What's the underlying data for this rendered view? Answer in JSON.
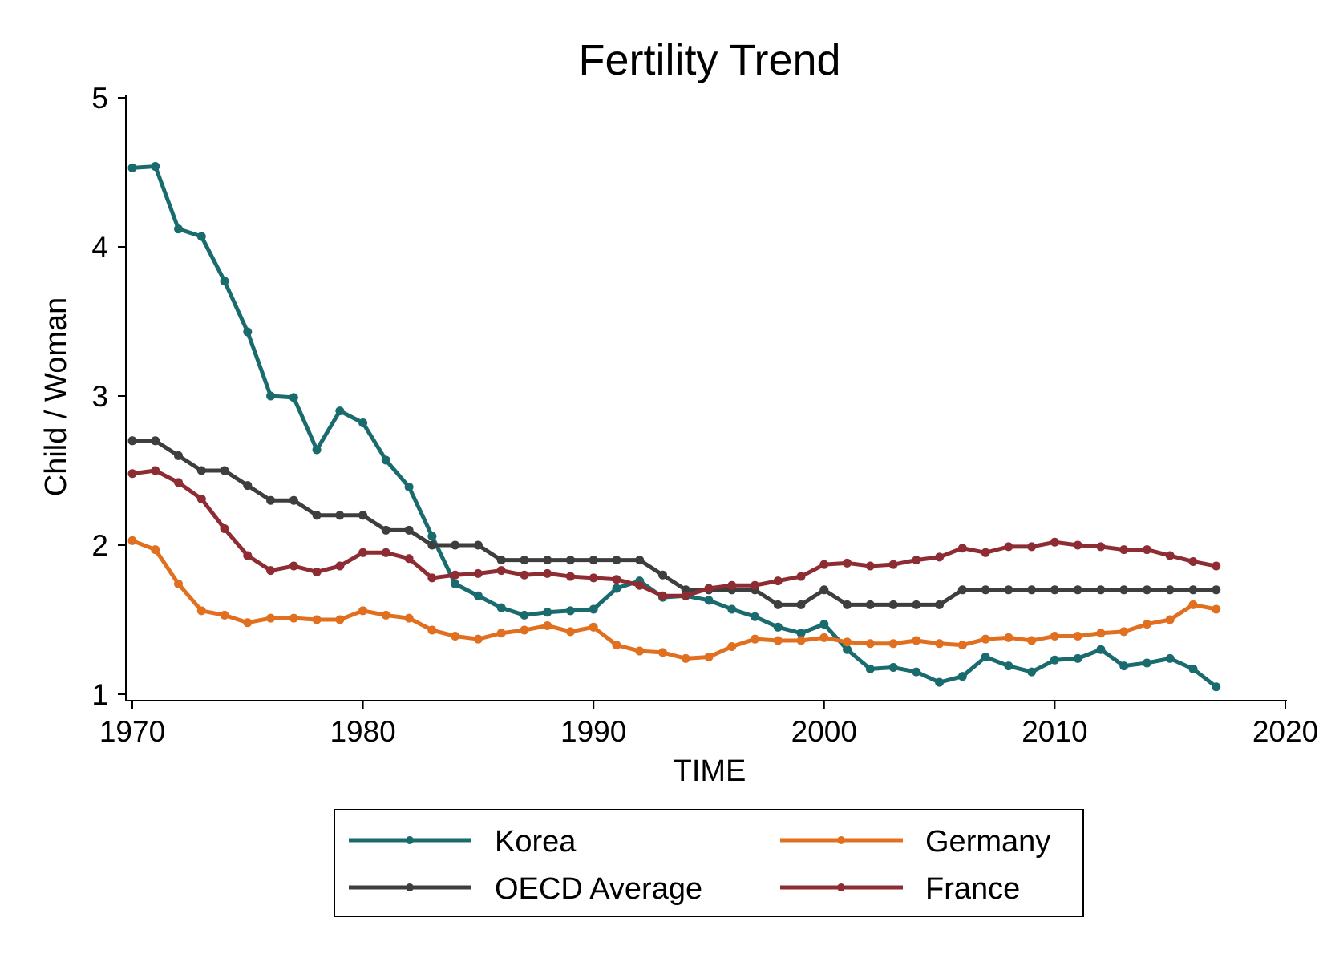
{
  "chart_data": {
    "type": "line",
    "title": "Fertility Trend",
    "xlabel": "TIME",
    "ylabel": "Child / Woman",
    "xlim": [
      1970,
      2020
    ],
    "ylim": [
      1,
      5
    ],
    "x_ticks": [
      "1970",
      "1980",
      "1990",
      "2000",
      "2010",
      "2020"
    ],
    "y_ticks": [
      "1",
      "2",
      "3",
      "4",
      "5"
    ],
    "grid": false,
    "legend_position": "bottom",
    "x": [
      1970,
      1971,
      1972,
      1973,
      1974,
      1975,
      1976,
      1977,
      1978,
      1979,
      1980,
      1981,
      1982,
      1983,
      1984,
      1985,
      1986,
      1987,
      1988,
      1989,
      1990,
      1991,
      1992,
      1993,
      1994,
      1995,
      1996,
      1997,
      1998,
      1999,
      2000,
      2001,
      2002,
      2003,
      2004,
      2005,
      2006,
      2007,
      2008,
      2009,
      2010,
      2011,
      2012,
      2013,
      2014,
      2015,
      2016,
      2017
    ],
    "series": [
      {
        "name": "Korea",
        "color": "#1a6b6e",
        "values": [
          4.53,
          4.54,
          4.12,
          4.07,
          3.77,
          3.43,
          3.0,
          2.99,
          2.64,
          2.9,
          2.82,
          2.57,
          2.39,
          2.06,
          1.74,
          1.66,
          1.58,
          1.53,
          1.55,
          1.56,
          1.57,
          1.71,
          1.76,
          1.65,
          1.66,
          1.63,
          1.57,
          1.52,
          1.45,
          1.41,
          1.47,
          1.3,
          1.17,
          1.18,
          1.15,
          1.08,
          1.12,
          1.25,
          1.19,
          1.15,
          1.23,
          1.24,
          1.3,
          1.19,
          1.21,
          1.24,
          1.17,
          1.05
        ]
      },
      {
        "name": "Germany",
        "color": "#e07020",
        "values": [
          2.03,
          1.97,
          1.74,
          1.56,
          1.53,
          1.48,
          1.51,
          1.51,
          1.5,
          1.5,
          1.56,
          1.53,
          1.51,
          1.43,
          1.39,
          1.37,
          1.41,
          1.43,
          1.46,
          1.42,
          1.45,
          1.33,
          1.29,
          1.28,
          1.24,
          1.25,
          1.32,
          1.37,
          1.36,
          1.36,
          1.38,
          1.35,
          1.34,
          1.34,
          1.36,
          1.34,
          1.33,
          1.37,
          1.38,
          1.36,
          1.39,
          1.39,
          1.41,
          1.42,
          1.47,
          1.5,
          1.6,
          1.57
        ]
      },
      {
        "name": "OECD Average",
        "color": "#3e3e3e",
        "values": [
          2.7,
          2.7,
          2.6,
          2.5,
          2.5,
          2.4,
          2.3,
          2.3,
          2.2,
          2.2,
          2.2,
          2.1,
          2.1,
          2.0,
          2.0,
          2.0,
          1.9,
          1.9,
          1.9,
          1.9,
          1.9,
          1.9,
          1.9,
          1.8,
          1.7,
          1.7,
          1.7,
          1.7,
          1.6,
          1.6,
          1.7,
          1.6,
          1.6,
          1.6,
          1.6,
          1.6,
          1.7,
          1.7,
          1.7,
          1.7,
          1.7,
          1.7,
          1.7,
          1.7,
          1.7,
          1.7,
          1.7,
          1.7
        ]
      },
      {
        "name": "France",
        "color": "#8e2c34",
        "values": [
          2.48,
          2.5,
          2.42,
          2.31,
          2.11,
          1.93,
          1.83,
          1.86,
          1.82,
          1.86,
          1.95,
          1.95,
          1.91,
          1.78,
          1.8,
          1.81,
          1.83,
          1.8,
          1.81,
          1.79,
          1.78,
          1.77,
          1.73,
          1.66,
          1.66,
          1.71,
          1.73,
          1.73,
          1.76,
          1.79,
          1.87,
          1.88,
          1.86,
          1.87,
          1.9,
          1.92,
          1.98,
          1.95,
          1.99,
          1.99,
          2.02,
          2.0,
          1.99,
          1.97,
          1.97,
          1.93,
          1.89,
          1.86
        ]
      }
    ]
  },
  "legend": {
    "items": [
      {
        "label": "Korea",
        "color": "#1a6b6e"
      },
      {
        "label": "Germany",
        "color": "#e07020"
      },
      {
        "label": "OECD Average",
        "color": "#3e3e3e"
      },
      {
        "label": "France",
        "color": "#8e2c34"
      }
    ]
  }
}
